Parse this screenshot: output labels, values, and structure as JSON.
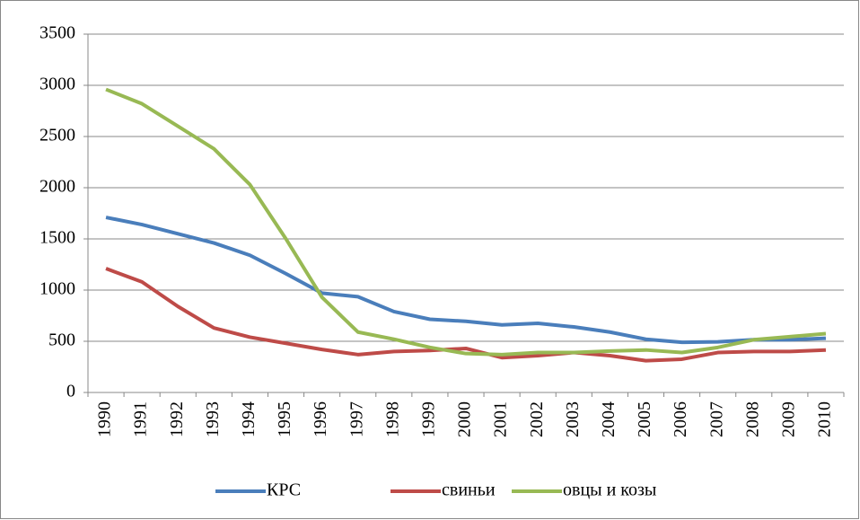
{
  "chart_data": {
    "type": "line",
    "categories": [
      "1990",
      "1991",
      "1992",
      "1993",
      "1994",
      "1995",
      "1996",
      "1997",
      "1998",
      "1999",
      "2000",
      "2001",
      "2002",
      "2003",
      "2004",
      "2005",
      "2006",
      "2007",
      "2008",
      "2009",
      "2010"
    ],
    "series": [
      {
        "name": "КРС",
        "color": "#4a7ebb",
        "values": [
          1710,
          1640,
          1550,
          1460,
          1340,
          1160,
          970,
          935,
          790,
          715,
          695,
          660,
          675,
          640,
          590,
          520,
          490,
          495,
          515,
          515,
          530
        ]
      },
      {
        "name": "свиньи",
        "color": "#be4b48",
        "values": [
          1210,
          1080,
          840,
          630,
          540,
          480,
          420,
          370,
          400,
          410,
          430,
          340,
          360,
          390,
          360,
          310,
          325,
          390,
          400,
          400,
          415
        ]
      },
      {
        "name": "овцы и козы",
        "color": "#98b954",
        "values": [
          2960,
          2820,
          2600,
          2380,
          2030,
          1500,
          930,
          590,
          520,
          440,
          380,
          370,
          390,
          390,
          405,
          415,
          390,
          440,
          515,
          545,
          575
        ]
      }
    ],
    "ylim": [
      0,
      3500
    ],
    "yticks": [
      0,
      500,
      1000,
      1500,
      2000,
      2500,
      3000,
      3500
    ],
    "grid": true,
    "legend": "bottom"
  }
}
